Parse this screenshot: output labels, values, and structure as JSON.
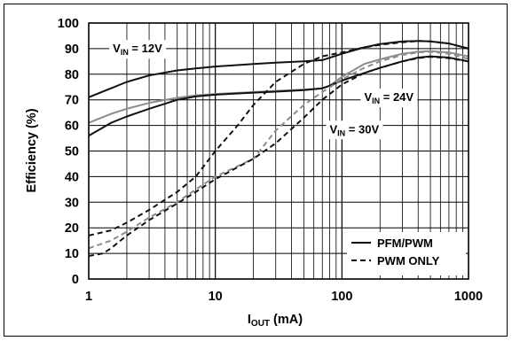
{
  "chart_data": {
    "type": "line",
    "xscale": "log",
    "xlim": [
      1,
      1000
    ],
    "ylim": [
      0,
      100
    ],
    "grid": true,
    "legend_position": "bottom-right",
    "xlabel": {
      "main": "I",
      "sub": "OUT",
      "tail": " (mA)"
    },
    "ylabel": "Efficiency (%)",
    "x_ticks": [
      1,
      10,
      100,
      1000
    ],
    "x_tick_labels": [
      "1",
      "10",
      "100",
      "1000"
    ],
    "y_ticks": [
      0,
      10,
      20,
      30,
      40,
      50,
      60,
      70,
      80,
      90,
      100
    ],
    "y_tick_labels": [
      "0",
      "10",
      "20",
      "30",
      "40",
      "50",
      "60",
      "70",
      "80",
      "90",
      "100"
    ],
    "annotations": [
      {
        "main": "V",
        "sub": "IN",
        "tail": " = 12V",
        "x": 1.55,
        "y": 88.5
      },
      {
        "main": "V",
        "sub": "IN",
        "tail": " = 24V",
        "x": 150,
        "y": 69.5
      },
      {
        "main": "V",
        "sub": "IN",
        "tail": " = 30V",
        "x": 80,
        "y": 57
      }
    ],
    "legend": [
      {
        "label": "PFM/PWM",
        "style": "solid"
      },
      {
        "label": "PWM ONLY",
        "style": "dashed"
      }
    ],
    "series": [
      {
        "group": "12V",
        "mode": "PFM/PWM",
        "color": "#111111",
        "dash": "solid",
        "x": [
          1,
          1.5,
          2,
          3,
          5,
          7,
          10,
          20,
          30,
          50,
          70,
          100,
          150,
          200,
          300,
          400,
          500,
          700,
          1000
        ],
        "y": [
          71,
          74.5,
          77,
          79.5,
          81.5,
          82.3,
          83,
          84,
          84.5,
          85,
          85.5,
          88,
          90.5,
          91.8,
          92.8,
          93,
          92.8,
          92,
          90
        ]
      },
      {
        "group": "24V",
        "mode": "PFM/PWM",
        "color": "#8c8c8c",
        "dash": "solid",
        "x": [
          1,
          1.5,
          2,
          3,
          5,
          7,
          10,
          20,
          30,
          50,
          70,
          80,
          100,
          150,
          200,
          300,
          400,
          500,
          700,
          1000
        ],
        "y": [
          61,
          64.5,
          66.5,
          68.8,
          70.8,
          71.7,
          72.3,
          73,
          73.5,
          74,
          74.5,
          75.5,
          79,
          84,
          85.8,
          88,
          88.8,
          89,
          88.5,
          87
        ]
      },
      {
        "group": "30V",
        "mode": "PFM/PWM",
        "color": "#111111",
        "dash": "solid",
        "x": [
          1,
          1.5,
          2,
          3,
          5,
          7,
          10,
          20,
          30,
          50,
          70,
          80,
          100,
          150,
          200,
          300,
          400,
          500,
          700,
          1000
        ],
        "y": [
          56,
          61,
          63.5,
          66.5,
          70,
          71.3,
          72,
          72.8,
          73.2,
          73.8,
          74.5,
          75.5,
          77.5,
          80.5,
          82.5,
          85,
          86.5,
          87,
          86.5,
          85
        ]
      },
      {
        "group": "12V",
        "mode": "PWM ONLY",
        "color": "#111111",
        "dash": "dashed",
        "x": [
          1,
          1.5,
          2,
          3,
          5,
          7,
          10,
          15,
          20,
          30,
          50,
          70,
          100,
          150,
          200,
          300,
          400,
          500,
          700,
          1000
        ],
        "y": [
          17,
          19,
          22,
          27,
          34,
          40,
          50,
          60,
          68,
          77,
          84,
          87,
          88.5,
          90.5,
          91.5,
          92.5,
          93,
          92.8,
          92,
          90
        ]
      },
      {
        "group": "24V",
        "mode": "PWM ONLY",
        "color": "#8c8c8c",
        "dash": "dashed",
        "x": [
          1,
          1.5,
          2,
          3,
          5,
          7,
          10,
          20,
          25,
          30,
          50,
          70,
          100,
          150,
          200,
          300,
          400,
          500,
          700,
          1000
        ],
        "y": [
          12,
          15,
          18.5,
          24,
          30,
          35,
          40,
          47,
          53,
          58,
          68,
          73,
          78,
          82.5,
          85,
          87.5,
          88.5,
          88.8,
          88,
          86
        ]
      },
      {
        "group": "30V",
        "mode": "PWM ONLY",
        "color": "#111111",
        "dash": "dashed",
        "x": [
          1,
          1.3,
          1.5,
          2,
          3,
          5,
          7,
          10,
          20,
          30,
          50,
          70,
          100,
          150,
          200,
          300,
          400,
          500,
          700,
          1000
        ],
        "y": [
          9,
          10,
          12,
          17,
          23,
          29.5,
          34,
          39,
          47,
          53,
          63,
          70,
          76,
          80.5,
          82.5,
          85,
          86.3,
          86.8,
          86.3,
          85
        ]
      }
    ]
  }
}
